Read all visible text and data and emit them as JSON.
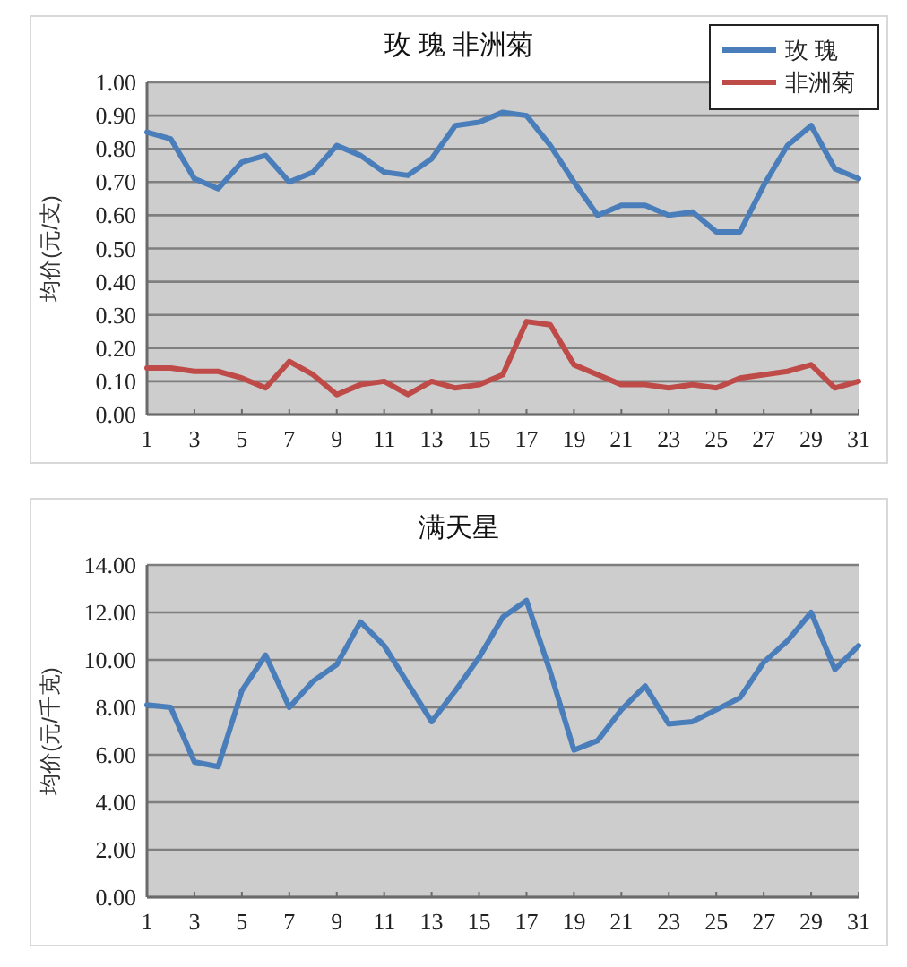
{
  "chart_data": [
    {
      "type": "line",
      "title": "玫 瑰  非洲菊",
      "ylabel": "均价(元/支)",
      "x": [
        1,
        2,
        3,
        4,
        5,
        6,
        7,
        8,
        9,
        10,
        11,
        12,
        13,
        14,
        15,
        16,
        17,
        18,
        19,
        20,
        21,
        22,
        23,
        24,
        25,
        26,
        27,
        28,
        29,
        30,
        31
      ],
      "xlim": [
        1,
        31
      ],
      "xticks": [
        1,
        3,
        5,
        7,
        9,
        11,
        13,
        15,
        17,
        19,
        21,
        23,
        25,
        27,
        29,
        31
      ],
      "ylim": [
        0,
        1
      ],
      "yticks": [
        {
          "value": 0,
          "label": "0.00"
        },
        {
          "value": 0.1,
          "label": "0.10"
        },
        {
          "value": 0.2,
          "label": "0.20"
        },
        {
          "value": 0.3,
          "label": "0.30"
        },
        {
          "value": 0.4,
          "label": "0.40"
        },
        {
          "value": 0.5,
          "label": "0.50"
        },
        {
          "value": 0.6,
          "label": "0.60"
        },
        {
          "value": 0.7,
          "label": "0.70"
        },
        {
          "value": 0.8,
          "label": "0.80"
        },
        {
          "value": 0.9,
          "label": "0.90"
        },
        {
          "value": 1,
          "label": "1.00"
        }
      ],
      "grid": "y",
      "legend": "top right",
      "marker": "none",
      "line_style": "solid",
      "series": [
        {
          "name": "玫 瑰",
          "color": "#4a7ebb",
          "values": [
            0.85,
            0.83,
            0.71,
            0.68,
            0.76,
            0.78,
            0.7,
            0.73,
            0.81,
            0.78,
            0.73,
            0.72,
            0.77,
            0.87,
            0.88,
            0.91,
            0.9,
            0.81,
            0.7,
            0.6,
            0.63,
            0.63,
            0.6,
            0.61,
            0.55,
            0.55,
            0.69,
            0.81,
            0.87,
            0.74,
            0.71
          ]
        },
        {
          "name": "非洲菊",
          "color": "#be4b48",
          "values": [
            0.14,
            0.14,
            0.13,
            0.13,
            0.11,
            0.08,
            0.16,
            0.12,
            0.06,
            0.09,
            0.1,
            0.06,
            0.1,
            0.08,
            0.09,
            0.12,
            0.28,
            0.27,
            0.15,
            0.12,
            0.09,
            0.09,
            0.08,
            0.09,
            0.08,
            0.11,
            0.12,
            0.13,
            0.15,
            0.08,
            0.1
          ]
        }
      ]
    },
    {
      "type": "line",
      "title": "满天星",
      "ylabel": "均价(元/千克)",
      "x": [
        1,
        2,
        3,
        4,
        5,
        6,
        7,
        8,
        9,
        10,
        11,
        12,
        13,
        14,
        15,
        16,
        17,
        18,
        19,
        20,
        21,
        22,
        23,
        24,
        25,
        26,
        27,
        28,
        29,
        30,
        31
      ],
      "xlim": [
        1,
        31
      ],
      "xticks": [
        1,
        3,
        5,
        7,
        9,
        11,
        13,
        15,
        17,
        19,
        21,
        23,
        25,
        27,
        29,
        31
      ],
      "ylim": [
        0,
        14
      ],
      "yticks": [
        {
          "value": 0,
          "label": "0.00"
        },
        {
          "value": 2,
          "label": "2.00"
        },
        {
          "value": 4,
          "label": "4.00"
        },
        {
          "value": 6,
          "label": "6.00"
        },
        {
          "value": 8,
          "label": "8.00"
        },
        {
          "value": 10,
          "label": "10.00"
        },
        {
          "value": 12,
          "label": "12.00"
        },
        {
          "value": 14,
          "label": "14.00"
        }
      ],
      "grid": "y",
      "marker": "none",
      "line_style": "solid",
      "series": [
        {
          "color": "#4a7ebb",
          "values": [
            8.1,
            8.0,
            5.7,
            5.5,
            8.7,
            10.2,
            8.0,
            9.1,
            9.8,
            11.6,
            10.6,
            9.0,
            7.4,
            8.7,
            10.1,
            11.8,
            12.5,
            9.5,
            6.2,
            6.6,
            7.9,
            8.9,
            7.3,
            7.4,
            7.9,
            8.4,
            9.9,
            10.8,
            12.0,
            9.6,
            10.6
          ]
        }
      ]
    }
  ]
}
